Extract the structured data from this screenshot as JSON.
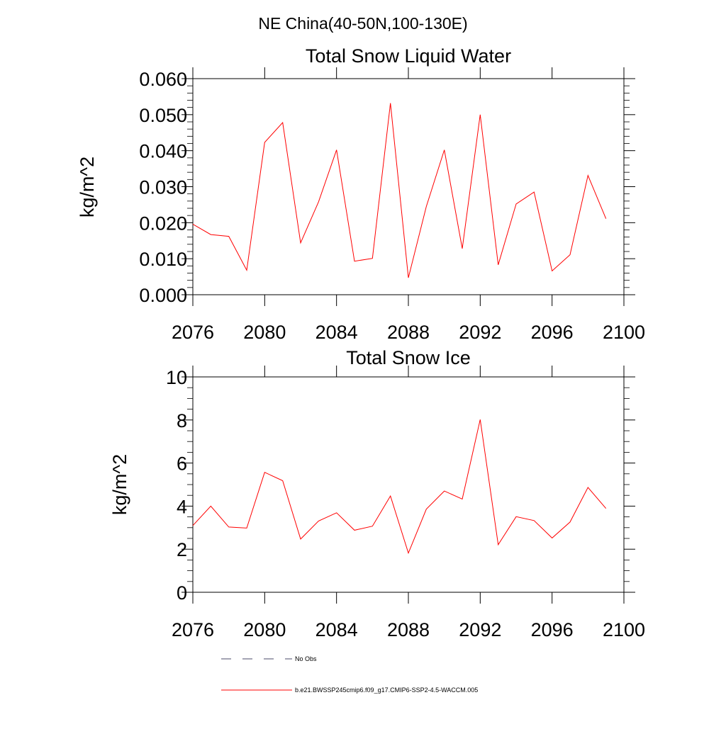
{
  "figure": {
    "suptitle": "NE China(40-50N,100-130E)",
    "line_color": "#ff0000",
    "axis_color": "#000000"
  },
  "chart_data": [
    {
      "type": "line",
      "title": "Total Snow Liquid Water",
      "ylabel": "kg/m^2",
      "xlabel": "",
      "xlim": [
        2076,
        2100
      ],
      "ylim": [
        0,
        0.06
      ],
      "xticks": [
        "2076",
        "2080",
        "2084",
        "2088",
        "2092",
        "2096",
        "2100"
      ],
      "yticks": [
        "0.000",
        "0.010",
        "0.020",
        "0.030",
        "0.040",
        "0.050",
        "0.060"
      ],
      "grid": false,
      "series": [
        {
          "name": "b.e21.BWSSP245cmip6.f09_g17.CMIP6-SSP2-4.5-WACCM.005",
          "color": "#ff0000",
          "x": [
            2076,
            2077,
            2078,
            2079,
            2080,
            2081,
            2082,
            2083,
            2084,
            2085,
            2086,
            2087,
            2088,
            2089,
            2090,
            2091,
            2092,
            2093,
            2094,
            2095,
            2096,
            2097,
            2098,
            2099
          ],
          "values": [
            0.0196,
            0.0167,
            0.0162,
            0.0068,
            0.0423,
            0.0478,
            0.0144,
            0.0258,
            0.0402,
            0.0093,
            0.0101,
            0.0532,
            0.0047,
            0.0245,
            0.0402,
            0.0128,
            0.05,
            0.0083,
            0.0252,
            0.0285,
            0.0066,
            0.0111,
            0.0331,
            0.0211
          ]
        }
      ]
    },
    {
      "type": "line",
      "title": "Total Snow Ice",
      "ylabel": "kg/m^2",
      "xlabel": "",
      "xlim": [
        2076,
        2100
      ],
      "ylim": [
        0,
        10
      ],
      "xticks": [
        "2076",
        "2080",
        "2084",
        "2088",
        "2092",
        "2096",
        "2100"
      ],
      "yticks": [
        "0",
        "2",
        "4",
        "6",
        "8",
        "10"
      ],
      "grid": false,
      "series": [
        {
          "name": "b.e21.BWSSP245cmip6.f09_g17.CMIP6-SSP2-4.5-WACCM.005",
          "color": "#ff0000",
          "x": [
            2076,
            2077,
            2078,
            2079,
            2080,
            2081,
            2082,
            2083,
            2084,
            2085,
            2086,
            2087,
            2088,
            2089,
            2090,
            2091,
            2092,
            2093,
            2094,
            2095,
            2096,
            2097,
            2098,
            2099
          ],
          "values": [
            3.1,
            4.0,
            3.03,
            2.98,
            5.57,
            5.18,
            2.47,
            3.31,
            3.69,
            2.88,
            3.07,
            4.47,
            1.82,
            3.86,
            4.7,
            4.33,
            8.02,
            2.21,
            3.51,
            3.33,
            2.52,
            3.26,
            4.87,
            3.89
          ]
        }
      ]
    }
  ],
  "legend": {
    "placement": "bottom",
    "items": [
      {
        "label": "No Obs",
        "style": "dashed",
        "color": "#4a4a6a"
      },
      {
        "label": "b.e21.BWSSP245cmip6.f09_g17.CMIP6-SSP2-4.5-WACCM.005",
        "style": "solid",
        "color": "#ff0000"
      }
    ]
  }
}
